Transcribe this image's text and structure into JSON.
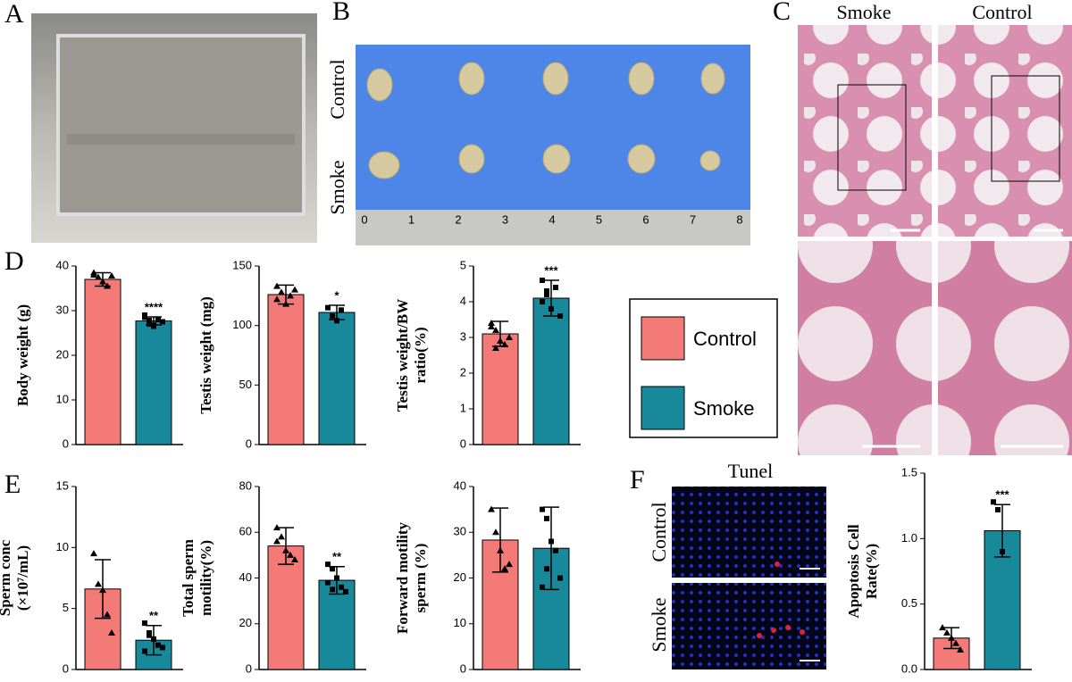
{
  "panel_labels": [
    "A",
    "B",
    "C",
    "D",
    "E",
    "F"
  ],
  "photo_b": {
    "rows": [
      "Control",
      "Smoke"
    ],
    "ruler": [
      "0",
      "1",
      "2",
      "3",
      "4",
      "5",
      "6",
      "7",
      "8"
    ]
  },
  "photo_c": {
    "columns": [
      "Smoke",
      "Control"
    ]
  },
  "photo_f": {
    "title": "Tunel",
    "rows": [
      "Control",
      "Smoke"
    ]
  },
  "legend": {
    "items": [
      {
        "name": "Control",
        "color": "#f47a78"
      },
      {
        "name": "Smoke",
        "color": "#17899b"
      }
    ]
  },
  "chart_data": [
    {
      "type": "bar",
      "ylabel": [
        "Body weight (g)"
      ],
      "values": [
        37,
        27.7
      ],
      "errors": [
        1.5,
        0.9
      ],
      "annotation": "****",
      "points": [
        [
          38.5,
          37.5,
          36.5,
          35.5,
          37.8,
          38
        ],
        [
          28.5,
          27,
          26.5,
          28,
          27.5,
          29,
          27.8,
          26.8
        ]
      ],
      "ylim": [
        0,
        40
      ],
      "yticks": [
        0,
        10,
        20,
        30,
        40
      ]
    },
    {
      "type": "bar",
      "ylabel": [
        "Testis weight (mg)"
      ],
      "values": [
        126,
        111
      ],
      "errors": [
        8,
        6
      ],
      "annotation": "*",
      "points": [
        [
          133,
          128,
          118,
          125,
          130,
          122
        ],
        [
          115,
          108,
          104,
          113
        ]
      ],
      "ylim": [
        0,
        150
      ],
      "yticks": [
        0,
        50,
        100,
        150
      ]
    },
    {
      "type": "bar",
      "ylabel": [
        "Testis weight/BW",
        "ratio(%)"
      ],
      "values": [
        3.1,
        4.1
      ],
      "errors": [
        0.35,
        0.5
      ],
      "annotation": "***",
      "points": [
        [
          3.4,
          3.2,
          2.9,
          2.8,
          3.0,
          3.3,
          2.7
        ],
        [
          4.6,
          4.2,
          3.8,
          4.4,
          3.6,
          4.0,
          4.3
        ]
      ],
      "ylim": [
        0,
        5
      ],
      "yticks": [
        0,
        1,
        2,
        3,
        4,
        5
      ]
    },
    {
      "type": "bar",
      "ylabel": [
        "Sperm conc",
        "(×10⁷/mL)"
      ],
      "values": [
        6.6,
        2.4
      ],
      "errors": [
        2.4,
        1.2
      ],
      "annotation": "**",
      "points": [
        [
          9.5,
          7,
          6.5,
          4.5,
          3
        ],
        [
          3.8,
          3,
          2.5,
          2,
          1.8,
          1.5,
          2.8
        ]
      ],
      "ylim": [
        0,
        15
      ],
      "yticks": [
        0,
        5,
        10,
        15
      ]
    },
    {
      "type": "bar",
      "ylabel": [
        "Total sperm",
        "motility(%)"
      ],
      "values": [
        54,
        39
      ],
      "errors": [
        8,
        6
      ],
      "annotation": "**",
      "points": [
        [
          62,
          58,
          52,
          50,
          48,
          56
        ],
        [
          46,
          44,
          40,
          36,
          34,
          38,
          35
        ]
      ],
      "ylim": [
        0,
        80
      ],
      "yticks": [
        0,
        20,
        40,
        60,
        80
      ]
    },
    {
      "type": "bar",
      "ylabel": [
        "Forward motility",
        "sperm (%)"
      ],
      "values": [
        28.3,
        26.5
      ],
      "errors": [
        7,
        9
      ],
      "points": [
        [
          35,
          30,
          26,
          22,
          23
        ],
        [
          35,
          33,
          28,
          26,
          20,
          18,
          22
        ]
      ],
      "ylim": [
        0,
        40
      ],
      "yticks": [
        0,
        10,
        20,
        30,
        40
      ]
    },
    {
      "type": "bar",
      "ylabel": [
        "Apoptosis Cell",
        "Rate(%)"
      ],
      "values": [
        0.24,
        1.06
      ],
      "errors": [
        0.08,
        0.2
      ],
      "annotation": "***",
      "points": [
        [
          0.32,
          0.28,
          0.24,
          0.2,
          0.15
        ],
        [
          1.28,
          1.22,
          0.9
        ]
      ],
      "ylim": [
        0,
        1.5
      ],
      "yticks": [
        {
          "value": 0,
          "label": "0.0"
        },
        0.5,
        {
          "value": 1,
          "label": "1.0"
        },
        1.5
      ]
    }
  ]
}
